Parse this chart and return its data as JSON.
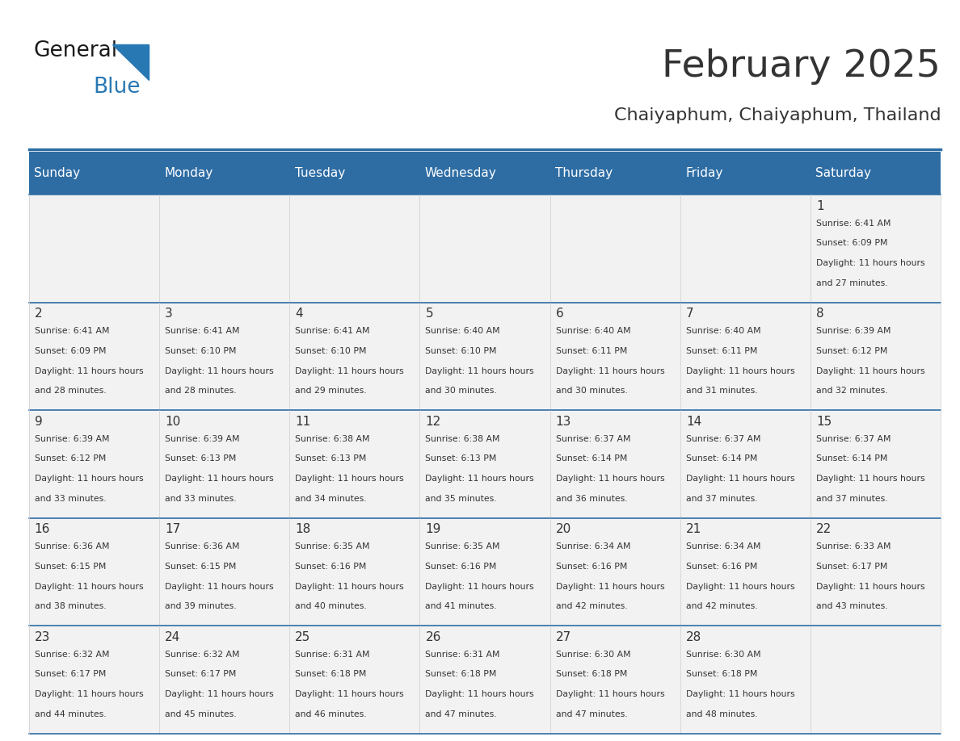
{
  "title": "February 2025",
  "subtitle": "Chaiyaphum, Chaiyaphum, Thailand",
  "header_bg": "#2E6DA4",
  "header_text_color": "#FFFFFF",
  "cell_bg_light": "#F2F2F2",
  "border_color": "#2E6DA4",
  "text_color": "#333333",
  "days_of_week": [
    "Sunday",
    "Monday",
    "Tuesday",
    "Wednesday",
    "Thursday",
    "Friday",
    "Saturday"
  ],
  "calendar": [
    [
      null,
      null,
      null,
      null,
      null,
      null,
      {
        "day": 1,
        "sunrise": "6:41 AM",
        "sunset": "6:09 PM",
        "daylight": "11 hours and 27 minutes."
      }
    ],
    [
      {
        "day": 2,
        "sunrise": "6:41 AM",
        "sunset": "6:09 PM",
        "daylight": "11 hours and 28 minutes."
      },
      {
        "day": 3,
        "sunrise": "6:41 AM",
        "sunset": "6:10 PM",
        "daylight": "11 hours and 28 minutes."
      },
      {
        "day": 4,
        "sunrise": "6:41 AM",
        "sunset": "6:10 PM",
        "daylight": "11 hours and 29 minutes."
      },
      {
        "day": 5,
        "sunrise": "6:40 AM",
        "sunset": "6:10 PM",
        "daylight": "11 hours and 30 minutes."
      },
      {
        "day": 6,
        "sunrise": "6:40 AM",
        "sunset": "6:11 PM",
        "daylight": "11 hours and 30 minutes."
      },
      {
        "day": 7,
        "sunrise": "6:40 AM",
        "sunset": "6:11 PM",
        "daylight": "11 hours and 31 minutes."
      },
      {
        "day": 8,
        "sunrise": "6:39 AM",
        "sunset": "6:12 PM",
        "daylight": "11 hours and 32 minutes."
      }
    ],
    [
      {
        "day": 9,
        "sunrise": "6:39 AM",
        "sunset": "6:12 PM",
        "daylight": "11 hours and 33 minutes."
      },
      {
        "day": 10,
        "sunrise": "6:39 AM",
        "sunset": "6:13 PM",
        "daylight": "11 hours and 33 minutes."
      },
      {
        "day": 11,
        "sunrise": "6:38 AM",
        "sunset": "6:13 PM",
        "daylight": "11 hours and 34 minutes."
      },
      {
        "day": 12,
        "sunrise": "6:38 AM",
        "sunset": "6:13 PM",
        "daylight": "11 hours and 35 minutes."
      },
      {
        "day": 13,
        "sunrise": "6:37 AM",
        "sunset": "6:14 PM",
        "daylight": "11 hours and 36 minutes."
      },
      {
        "day": 14,
        "sunrise": "6:37 AM",
        "sunset": "6:14 PM",
        "daylight": "11 hours and 37 minutes."
      },
      {
        "day": 15,
        "sunrise": "6:37 AM",
        "sunset": "6:14 PM",
        "daylight": "11 hours and 37 minutes."
      }
    ],
    [
      {
        "day": 16,
        "sunrise": "6:36 AM",
        "sunset": "6:15 PM",
        "daylight": "11 hours and 38 minutes."
      },
      {
        "day": 17,
        "sunrise": "6:36 AM",
        "sunset": "6:15 PM",
        "daylight": "11 hours and 39 minutes."
      },
      {
        "day": 18,
        "sunrise": "6:35 AM",
        "sunset": "6:16 PM",
        "daylight": "11 hours and 40 minutes."
      },
      {
        "day": 19,
        "sunrise": "6:35 AM",
        "sunset": "6:16 PM",
        "daylight": "11 hours and 41 minutes."
      },
      {
        "day": 20,
        "sunrise": "6:34 AM",
        "sunset": "6:16 PM",
        "daylight": "11 hours and 42 minutes."
      },
      {
        "day": 21,
        "sunrise": "6:34 AM",
        "sunset": "6:16 PM",
        "daylight": "11 hours and 42 minutes."
      },
      {
        "day": 22,
        "sunrise": "6:33 AM",
        "sunset": "6:17 PM",
        "daylight": "11 hours and 43 minutes."
      }
    ],
    [
      {
        "day": 23,
        "sunrise": "6:32 AM",
        "sunset": "6:17 PM",
        "daylight": "11 hours and 44 minutes."
      },
      {
        "day": 24,
        "sunrise": "6:32 AM",
        "sunset": "6:17 PM",
        "daylight": "11 hours and 45 minutes."
      },
      {
        "day": 25,
        "sunrise": "6:31 AM",
        "sunset": "6:18 PM",
        "daylight": "11 hours and 46 minutes."
      },
      {
        "day": 26,
        "sunrise": "6:31 AM",
        "sunset": "6:18 PM",
        "daylight": "11 hours and 47 minutes."
      },
      {
        "day": 27,
        "sunrise": "6:30 AM",
        "sunset": "6:18 PM",
        "daylight": "11 hours and 47 minutes."
      },
      {
        "day": 28,
        "sunrise": "6:30 AM",
        "sunset": "6:18 PM",
        "daylight": "11 hours and 48 minutes."
      },
      null
    ]
  ]
}
